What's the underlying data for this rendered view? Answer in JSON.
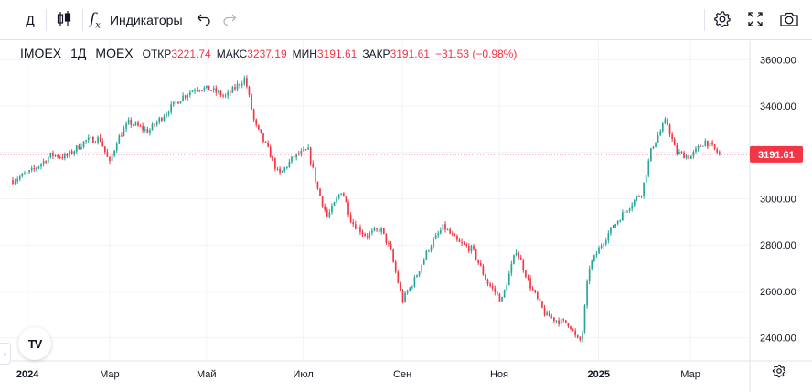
{
  "toolbar": {
    "interval_label": "Д",
    "indicators_label": "Индикаторы",
    "icons": [
      "candles-icon",
      "fx-icon",
      "undo-icon",
      "redo-icon",
      "gear-icon",
      "fullscreen-icon",
      "camera-icon"
    ]
  },
  "legend": {
    "symbol": "IMOEX",
    "interval": "1Д",
    "exchange": "MOEX",
    "open_label": "ОТКР",
    "open_value": "3221.74",
    "high_label": "МАКС",
    "high_value": "3237.19",
    "low_label": "МИН",
    "low_value": "3191.61",
    "close_label": "ЗАКР",
    "close_value": "3191.61",
    "change": "−31.53 (−0.98%)"
  },
  "logo_text": "TV",
  "colors": {
    "up": "#26a69a",
    "down": "#f23645",
    "grid": "#f0f3fa",
    "axis_text": "#131722",
    "price_line": "#f23645"
  },
  "chart_data": {
    "type": "candlestick",
    "title": "IMOEX · 1Д · MOEX",
    "ylim": [
      2300,
      3680
    ],
    "y_ticks": [
      2400,
      2600,
      2800,
      3000,
      3200,
      3400,
      3600
    ],
    "y_tick_labels": [
      "2400.00",
      "2600.00",
      "2800.00",
      "3000.00",
      "3200.00",
      "3400.00",
      "3600.00"
    ],
    "x_range": [
      0,
      15
    ],
    "x_ticks": [
      {
        "pos": 0.3,
        "label": "2024"
      },
      {
        "pos": 2.0,
        "label": "Мар"
      },
      {
        "pos": 4.0,
        "label": "Май"
      },
      {
        "pos": 6.0,
        "label": "Июл"
      },
      {
        "pos": 8.05,
        "label": "Сен"
      },
      {
        "pos": 10.05,
        "label": "Ноя"
      },
      {
        "pos": 12.1,
        "label": "2025"
      },
      {
        "pos": 14.0,
        "label": "Мар"
      }
    ],
    "last_price": 3191.61,
    "last_price_label": "3191.61",
    "path": [
      [
        0.0,
        3080
      ],
      [
        0.4,
        3120
      ],
      [
        0.8,
        3190
      ],
      [
        1.1,
        3180
      ],
      [
        1.5,
        3250
      ],
      [
        1.8,
        3260
      ],
      [
        2.0,
        3150
      ],
      [
        2.15,
        3250
      ],
      [
        2.4,
        3330
      ],
      [
        2.8,
        3290
      ],
      [
        3.2,
        3380
      ],
      [
        3.5,
        3440
      ],
      [
        3.8,
        3480
      ],
      [
        4.1,
        3470
      ],
      [
        4.4,
        3440
      ],
      [
        4.8,
        3520
      ],
      [
        5.0,
        3320
      ],
      [
        5.3,
        3200
      ],
      [
        5.5,
        3100
      ],
      [
        5.8,
        3180
      ],
      [
        6.1,
        3210
      ],
      [
        6.3,
        3040
      ],
      [
        6.5,
        2920
      ],
      [
        6.8,
        3040
      ],
      [
        7.0,
        2900
      ],
      [
        7.3,
        2840
      ],
      [
        7.6,
        2870
      ],
      [
        7.8,
        2780
      ],
      [
        8.05,
        2560
      ],
      [
        8.3,
        2650
      ],
      [
        8.6,
        2790
      ],
      [
        8.9,
        2880
      ],
      [
        9.2,
        2810
      ],
      [
        9.5,
        2780
      ],
      [
        9.8,
        2640
      ],
      [
        10.1,
        2560
      ],
      [
        10.4,
        2780
      ],
      [
        10.7,
        2620
      ],
      [
        11.0,
        2500
      ],
      [
        11.3,
        2470
      ],
      [
        11.5,
        2460
      ],
      [
        11.65,
        2390
      ],
      [
        11.75,
        2390
      ],
      [
        11.9,
        2700
      ],
      [
        12.15,
        2800
      ],
      [
        12.4,
        2880
      ],
      [
        12.7,
        2960
      ],
      [
        13.0,
        3030
      ],
      [
        13.2,
        3220
      ],
      [
        13.5,
        3340
      ],
      [
        13.7,
        3200
      ],
      [
        14.0,
        3180
      ],
      [
        14.3,
        3250
      ],
      [
        14.6,
        3192
      ]
    ]
  }
}
